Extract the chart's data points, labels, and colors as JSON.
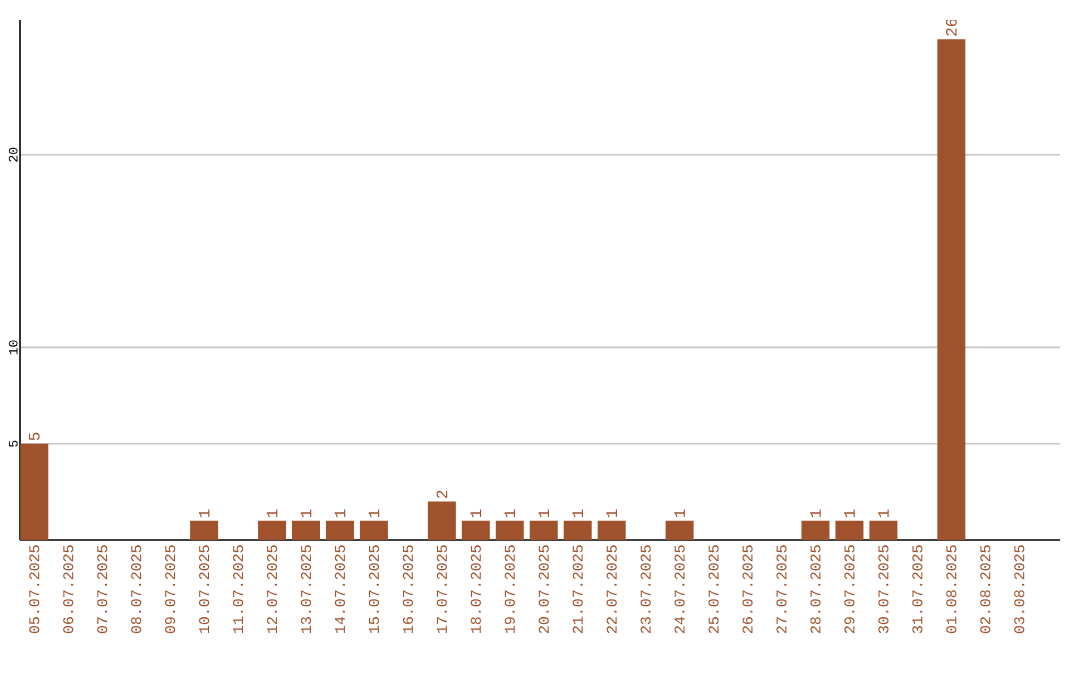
{
  "chart_data": {
    "type": "bar",
    "categories": [
      "05.07.2025",
      "06.07.2025",
      "07.07.2025",
      "08.07.2025",
      "09.07.2025",
      "10.07.2025",
      "11.07.2025",
      "12.07.2025",
      "13.07.2025",
      "14.07.2025",
      "15.07.2025",
      "16.07.2025",
      "17.07.2025",
      "18.07.2025",
      "19.07.2025",
      "20.07.2025",
      "21.07.2025",
      "22.07.2025",
      "23.07.2025",
      "24.07.2025",
      "25.07.2025",
      "26.07.2025",
      "27.07.2025",
      "28.07.2025",
      "29.07.2025",
      "30.07.2025",
      "31.07.2025",
      "01.08.2025",
      "02.08.2025",
      "03.08.2025"
    ],
    "values": [
      5,
      0,
      0,
      0,
      0,
      1,
      0,
      1,
      1,
      1,
      1,
      0,
      2,
      1,
      1,
      1,
      1,
      1,
      0,
      1,
      0,
      0,
      0,
      1,
      1,
      1,
      0,
      26,
      0,
      0
    ],
    "value_labels": [
      "5",
      null,
      null,
      null,
      null,
      "1",
      null,
      "1",
      "1",
      "1",
      "1",
      null,
      "2",
      "1",
      "1",
      "1",
      "1",
      "1",
      null,
      "1",
      null,
      null,
      null,
      "1",
      "1",
      "1",
      null,
      "26",
      null,
      null
    ],
    "color": "#a0522d",
    "ylim": [
      0,
      27
    ],
    "yticks": [
      5,
      10,
      20
    ],
    "grid": "y"
  }
}
